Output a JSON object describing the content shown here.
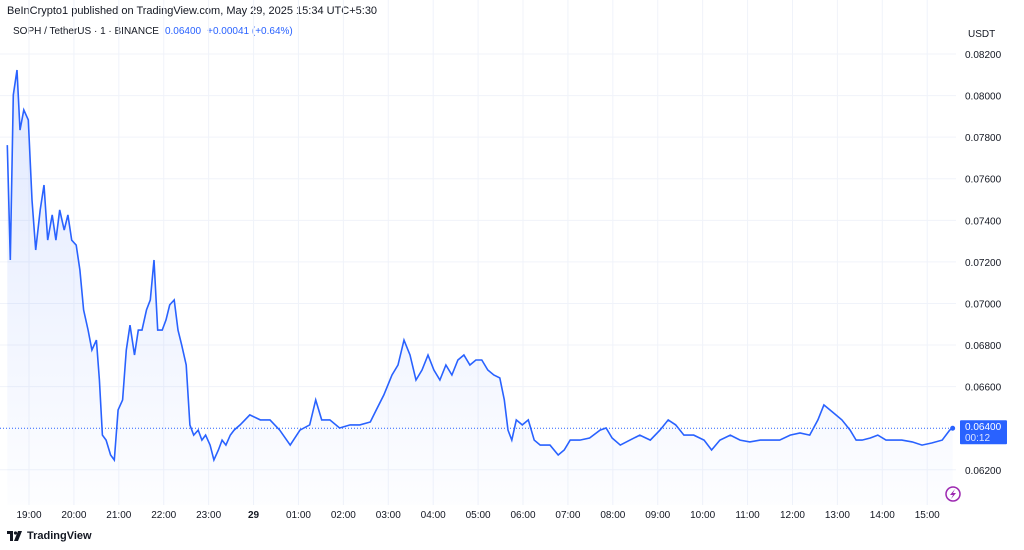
{
  "header": {
    "publisher": "BeInCrypto1 published on TradingView.com, May 29, 2025 15:34 UTC+5:30",
    "symbol": "SOPH / TetherUS · 1 · BINANCE",
    "last": "0.06400",
    "change": "+0.00041 (+0.64%)"
  },
  "footer": {
    "brand": "TradingView"
  },
  "colors": {
    "line": "#2962ff",
    "label_bg": "#2962ff",
    "flash": "#9c27b0"
  },
  "chart_data": {
    "type": "line",
    "title": "SOPH / TetherUS · 1 · BINANCE",
    "ylabel": "USDT",
    "xlabel": "",
    "ylim": [
      0.061,
      0.083
    ],
    "xlim_minutes_from_1900": [
      -35,
      1250
    ],
    "y_ticks": [
      "0.08200",
      "0.08000",
      "0.07800",
      "0.07600",
      "0.07400",
      "0.07200",
      "0.07000",
      "0.06800",
      "0.06600",
      "0.06200"
    ],
    "x_ticks": [
      {
        "t": 0,
        "label": "19:00"
      },
      {
        "t": 60,
        "label": "20:00"
      },
      {
        "t": 120,
        "label": "21:00"
      },
      {
        "t": 180,
        "label": "22:00"
      },
      {
        "t": 240,
        "label": "23:00"
      },
      {
        "t": 300,
        "label": "29",
        "bold": true
      },
      {
        "t": 360,
        "label": "01:00"
      },
      {
        "t": 420,
        "label": "02:00"
      },
      {
        "t": 480,
        "label": "03:00"
      },
      {
        "t": 540,
        "label": "04:00"
      },
      {
        "t": 600,
        "label": "05:00"
      },
      {
        "t": 660,
        "label": "06:00"
      },
      {
        "t": 720,
        "label": "07:00"
      },
      {
        "t": 780,
        "label": "08:00"
      },
      {
        "t": 840,
        "label": "09:00"
      },
      {
        "t": 900,
        "label": "10:00"
      },
      {
        "t": 960,
        "label": "11:00"
      },
      {
        "t": 1020,
        "label": "12:00"
      },
      {
        "t": 1080,
        "label": "13:00"
      },
      {
        "t": 1140,
        "label": "14:00"
      },
      {
        "t": 1200,
        "label": "15:00"
      }
    ],
    "last_price": {
      "value": 0.064,
      "label": "0.06400",
      "countdown": "00:12"
    },
    "t": [
      -29,
      -25,
      -21,
      -16,
      -12,
      -7,
      -1,
      4,
      9,
      15,
      20,
      25,
      31,
      36,
      41,
      47,
      52,
      57,
      63,
      68,
      73,
      79,
      84,
      90,
      94,
      98,
      103,
      109,
      114,
      119,
      125,
      130,
      135,
      141,
      146,
      151,
      157,
      162,
      167,
      172,
      178,
      183,
      188,
      194,
      199,
      204,
      210,
      215,
      220,
      226,
      231,
      236,
      242,
      247,
      253,
      258,
      263,
      269,
      274,
      282,
      295,
      309,
      322,
      335,
      349,
      362,
      375,
      383,
      391,
      402,
      415,
      429,
      442,
      456,
      464,
      474,
      485,
      493,
      501,
      509,
      517,
      525,
      533,
      541,
      549,
      557,
      565,
      573,
      581,
      589,
      597,
      605,
      613,
      621,
      629,
      635,
      640,
      645,
      651,
      659,
      667,
      675,
      683,
      696,
      707,
      715,
      723,
      736,
      749,
      763,
      771,
      779,
      790,
      803,
      816,
      830,
      843,
      854,
      864,
      875,
      888,
      902,
      912,
      923,
      937,
      950,
      963,
      977,
      990,
      1003,
      1017,
      1030,
      1043,
      1054,
      1062,
      1070,
      1078,
      1086,
      1097,
      1105,
      1113,
      1124,
      1134,
      1145,
      1156,
      1166,
      1180,
      1193,
      1206,
      1220,
      1230,
      1234
    ],
    "price": [
      0.07762,
      0.07209,
      0.08003,
      0.08123,
      0.07834,
      0.07931,
      0.07883,
      0.07498,
      0.07257,
      0.0745,
      0.0757,
      0.07305,
      0.07426,
      0.07305,
      0.0745,
      0.07353,
      0.07426,
      0.07305,
      0.07281,
      0.07161,
      0.06969,
      0.06872,
      0.06776,
      0.06824,
      0.06632,
      0.06367,
      0.06343,
      0.06271,
      0.06247,
      0.06488,
      0.06536,
      0.06776,
      0.06896,
      0.06752,
      0.06872,
      0.06872,
      0.06969,
      0.07017,
      0.07209,
      0.06872,
      0.06872,
      0.06921,
      0.06993,
      0.07017,
      0.06872,
      0.068,
      0.06704,
      0.06416,
      0.06367,
      0.06391,
      0.06343,
      0.06367,
      0.06319,
      0.06247,
      0.06295,
      0.06343,
      0.06319,
      0.06367,
      0.06391,
      0.06416,
      0.06464,
      0.0644,
      0.0644,
      0.06391,
      0.06319,
      0.06391,
      0.06416,
      0.06536,
      0.0644,
      0.0644,
      0.06401,
      0.06416,
      0.06416,
      0.0643,
      0.06488,
      0.0656,
      0.06656,
      0.06704,
      0.06824,
      0.06752,
      0.06632,
      0.0668,
      0.06752,
      0.0668,
      0.06632,
      0.06704,
      0.06656,
      0.06728,
      0.06752,
      0.06704,
      0.06728,
      0.06728,
      0.0668,
      0.06656,
      0.06642,
      0.06536,
      0.06391,
      0.06343,
      0.0644,
      0.06416,
      0.0644,
      0.06343,
      0.06319,
      0.06319,
      0.06271,
      0.06295,
      0.06343,
      0.06343,
      0.06353,
      0.06391,
      0.06401,
      0.06353,
      0.06319,
      0.06343,
      0.06367,
      0.06343,
      0.06391,
      0.0644,
      0.06416,
      0.06367,
      0.06367,
      0.06343,
      0.06295,
      0.06343,
      0.06367,
      0.06343,
      0.06334,
      0.06343,
      0.06343,
      0.06343,
      0.06367,
      0.06377,
      0.06367,
      0.0644,
      0.06512,
      0.06488,
      0.06464,
      0.0644,
      0.06391,
      0.06343,
      0.06343,
      0.06353,
      0.06367,
      0.06343,
      0.06343,
      0.06343,
      0.06334,
      0.06319,
      0.06329,
      0.06343,
      0.06391,
      0.064
    ]
  }
}
